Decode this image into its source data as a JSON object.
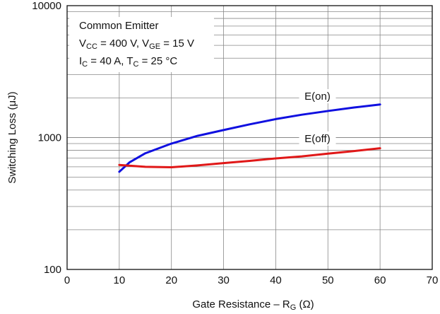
{
  "chart_data": {
    "type": "line",
    "x_axis": {
      "label": {
        "text": "Gate Resistance – R",
        "sub": "G",
        "suffix": " (Ω)"
      },
      "lim": [
        0,
        70
      ],
      "ticks": [
        0,
        10,
        20,
        30,
        40,
        50,
        60,
        70
      ],
      "tick_labels": [
        "0",
        "10",
        "20",
        "30",
        "40",
        "50",
        "60",
        "70"
      ]
    },
    "y_axis": {
      "label": "Switching Loss (μJ)",
      "scale": "log",
      "lim": [
        100,
        10000
      ],
      "tick_values": [
        100,
        1000,
        10000
      ],
      "tick_labels": [
        "100",
        "1000",
        "10000"
      ]
    },
    "grid": true,
    "legend_box": {
      "title": "Common Emitter",
      "line2": [
        {
          "text": "V"
        },
        {
          "text": "CC",
          "sub": true
        },
        {
          "text": " = 400 V, V"
        },
        {
          "text": "GE",
          "sub": true
        },
        {
          "text": " = 15 V"
        }
      ],
      "line3": [
        {
          "text": "I"
        },
        {
          "text": "C",
          "sub": true
        },
        {
          "text": " = 40 A, T"
        },
        {
          "text": "C",
          "sub": true
        },
        {
          "text": " = 25 °C"
        }
      ]
    },
    "series": [
      {
        "name": "E(on)",
        "color": "#1010e0",
        "x": [
          10,
          12,
          15,
          20,
          25,
          30,
          35,
          40,
          45,
          50,
          55,
          60
        ],
        "y": [
          550,
          650,
          760,
          900,
          1030,
          1140,
          1260,
          1380,
          1490,
          1590,
          1690,
          1780
        ]
      },
      {
        "name": "E(off)",
        "color": "#e01818",
        "x": [
          10,
          15,
          20,
          25,
          30,
          35,
          40,
          45,
          50,
          55,
          60
        ],
        "y": [
          620,
          600,
          595,
          615,
          640,
          665,
          695,
          720,
          755,
          790,
          830
        ]
      }
    ]
  }
}
